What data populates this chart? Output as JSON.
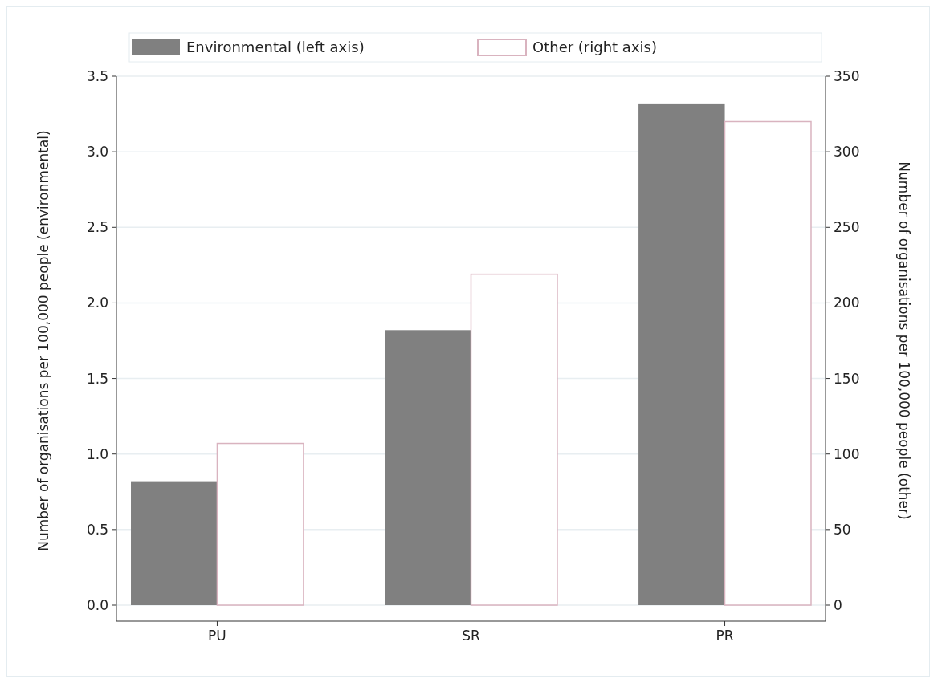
{
  "chart_data": {
    "type": "bar",
    "categories": [
      "PU",
      "SR",
      "PR"
    ],
    "series": [
      {
        "name": "Environmental (left axis)",
        "color": "#808080",
        "values": [
          0.82,
          1.82,
          3.32
        ]
      },
      {
        "name": "Other (right axis)",
        "color": "#d9b3bf",
        "values": [
          107,
          219,
          320
        ],
        "axis": "y2"
      }
    ],
    "ylabel": "Number of organisations per 100,000 people (environmental)",
    "y2label": "Number of organisations per 100,000 people (other)",
    "ylim": [
      0,
      3.5
    ],
    "yticks": [
      {
        "value": 0,
        "label": "0.0"
      },
      {
        "value": 0.5,
        "label": "0.5"
      },
      {
        "value": 1,
        "label": "1.0"
      },
      {
        "value": 1.5,
        "label": "1.5"
      },
      {
        "value": 2,
        "label": "2.0"
      },
      {
        "value": 2.5,
        "label": "2.5"
      },
      {
        "value": 3,
        "label": "3.0"
      },
      {
        "value": 3.5,
        "label": "3.5"
      }
    ],
    "y2lim": [
      0,
      350
    ],
    "y2ticks": [
      0,
      50,
      100,
      150,
      200,
      250,
      300,
      350
    ],
    "grid": "y",
    "legend": "top"
  }
}
